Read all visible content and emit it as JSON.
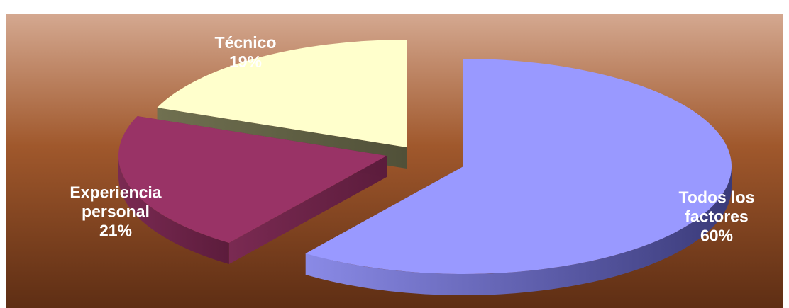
{
  "chart_data": {
    "type": "pie",
    "style": "3d-exploded",
    "legend": "none",
    "slices": [
      {
        "label_lines": [
          "Todos los",
          "factores"
        ],
        "percent_label": "60%",
        "value": 60,
        "color": "#9999ff"
      },
      {
        "label_lines": [
          "Experiencia",
          "personal"
        ],
        "percent_label": "21%",
        "value": 21,
        "color": "#993366"
      },
      {
        "label_lines": [
          "Técnico"
        ],
        "percent_label": "19%",
        "value": 19,
        "color": "#ffffcc"
      }
    ],
    "background": {
      "top_color": "#d4a890",
      "middle_color": "#a0582c",
      "bottom_color": "#5e2e14"
    }
  }
}
